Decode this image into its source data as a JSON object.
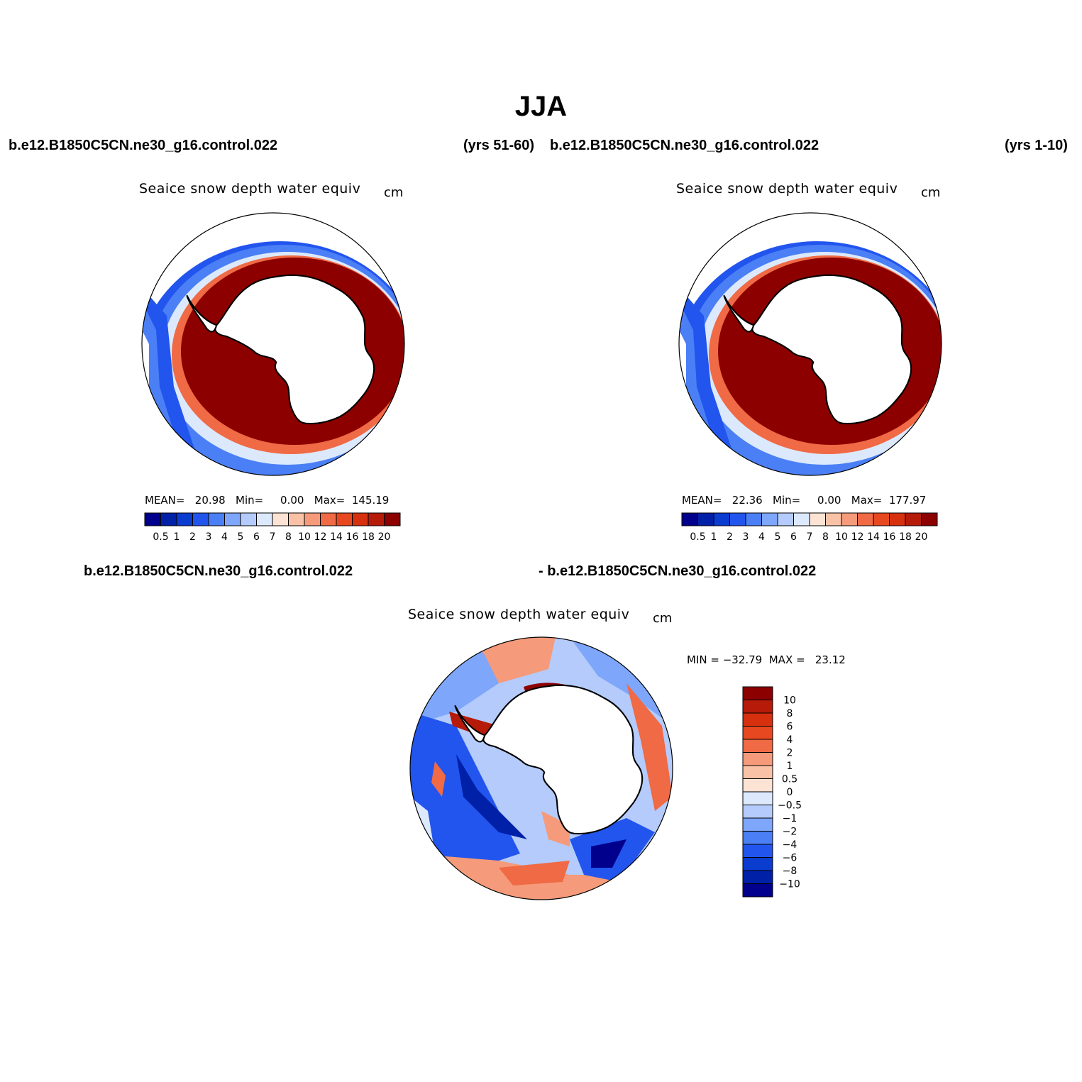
{
  "title": "JJA",
  "top_left": {
    "case": "b.e12.B1850C5CN.ne30_g16.control.022",
    "years": "(yrs 51-60)",
    "variable": "Seaice snow depth water equiv",
    "unit": "cm",
    "stats": "MEAN=   20.98   Min=     0.00   Max=  145.19"
  },
  "top_right": {
    "case": "b.e12.B1850C5CN.ne30_g16.control.022",
    "years": "(yrs 1-10)",
    "variable": "Seaice snow depth water equiv",
    "unit": "cm",
    "stats": "MEAN=   22.36   Min=     0.00   Max=  177.97"
  },
  "bottom": {
    "case_left": "b.e12.B1850C5CN.ne30_g16.control.022",
    "case_right": "- b.e12.B1850C5CN.ne30_g16.control.022",
    "variable": "Seaice snow depth water equiv",
    "unit": "cm",
    "stats": "MIN = −32.79  MAX =   23.12"
  },
  "colorbar_abs": {
    "labels": [
      "0.5",
      "1",
      "2",
      "3",
      "4",
      "5",
      "6",
      "7",
      "8",
      "10",
      "12",
      "14",
      "16",
      "18",
      "20"
    ],
    "colors": [
      "#00008c",
      "#0020a8",
      "#0a3cd0",
      "#2255ee",
      "#4b7ff5",
      "#7ea6fa",
      "#b4cbfb",
      "#dce9fd",
      "#fde3d4",
      "#f9c2a6",
      "#f59a7a",
      "#ef6a45",
      "#e84820",
      "#d6300e",
      "#b61a08",
      "#8c0000"
    ]
  },
  "colorbar_diff": {
    "labels": [
      "10",
      "8",
      "6",
      "4",
      "2",
      "1",
      "0.5",
      "0",
      "−0.5",
      "−1",
      "−2",
      "−4",
      "−6",
      "−8",
      "−10"
    ],
    "colors": [
      "#8c0000",
      "#b61a08",
      "#d6300e",
      "#e84820",
      "#ef6a45",
      "#f59a7a",
      "#f9c2a6",
      "#fde3d4",
      "#dce9fd",
      "#b4cbfb",
      "#7ea6fa",
      "#4b7ff5",
      "#2255ee",
      "#0a3cd0",
      "#0020a8",
      "#00008c"
    ]
  }
}
